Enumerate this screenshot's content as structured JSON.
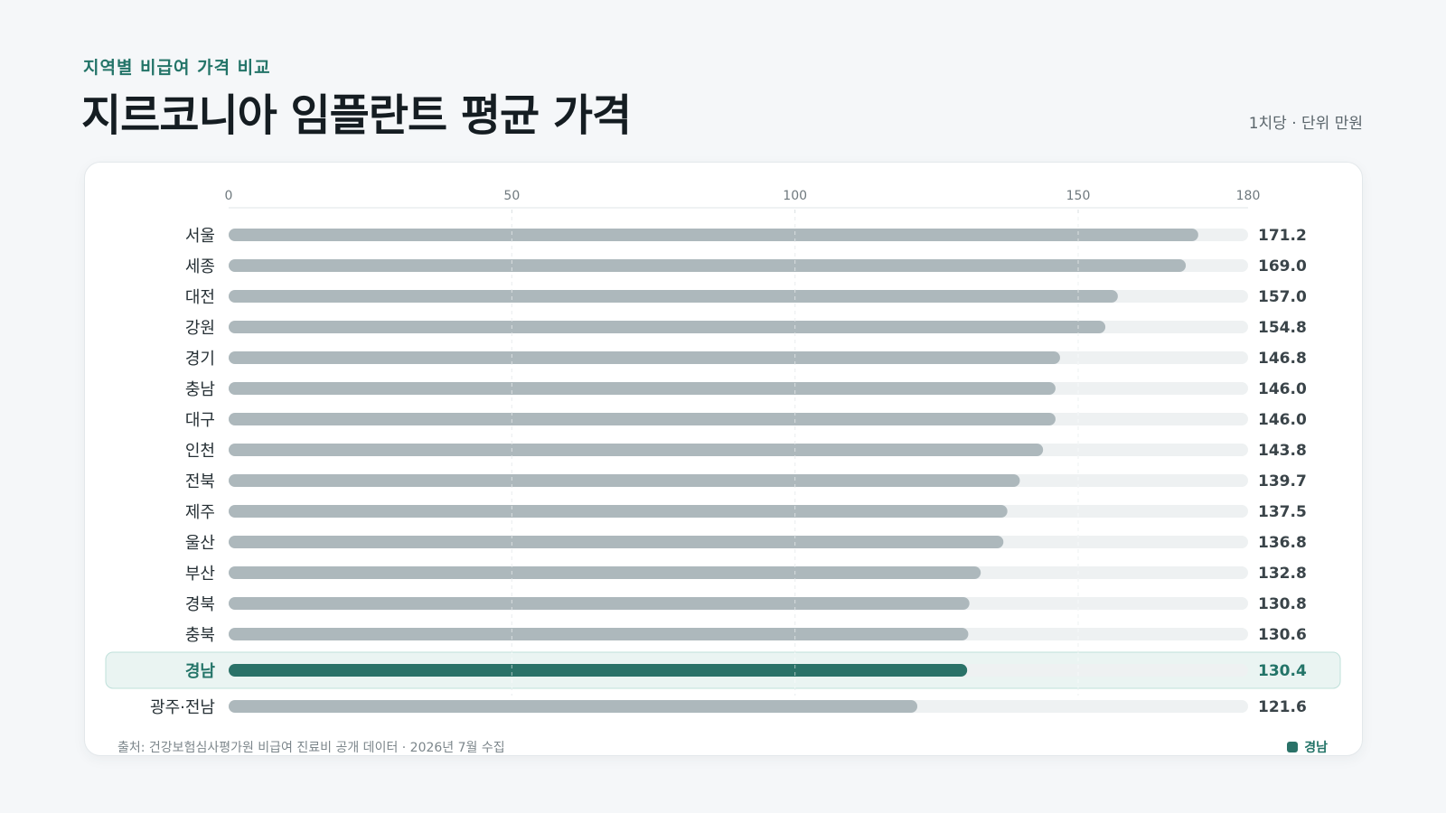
{
  "header": {
    "kicker": "지역별 비급여 가격 비교",
    "title": "지르코니아 임플란트 평균 가격",
    "unit": "1치당 · 단위 만원"
  },
  "footer": {
    "source": "출처: 건강보험심사평가원 비급여 진료비 공개 데이터 · 2026년 7월 수집",
    "legend_label": "경남"
  },
  "colors": {
    "bar": "#adb8bc",
    "track": "#eef1f2",
    "highlight": "#2a7268",
    "highlight_bg": "#eaf4f2",
    "highlight_border": "#bfe0da",
    "value_text": "#3a4449",
    "label_text": "#263035"
  },
  "chart_data": {
    "type": "bar",
    "orientation": "horizontal",
    "categories": [
      "서울",
      "세종",
      "대전",
      "강원",
      "경기",
      "충남",
      "대구",
      "인천",
      "전북",
      "제주",
      "울산",
      "부산",
      "경북",
      "충북",
      "경남",
      "광주·전남"
    ],
    "values": [
      171.2,
      169.0,
      157.0,
      154.8,
      146.8,
      146.0,
      146.0,
      143.8,
      139.7,
      137.5,
      136.8,
      132.8,
      130.8,
      130.6,
      130.4,
      121.6
    ],
    "value_labels": [
      "171.2",
      "169.0",
      "157.0",
      "154.8",
      "146.8",
      "146.0",
      "146.0",
      "143.8",
      "139.7",
      "137.5",
      "136.8",
      "132.8",
      "130.8",
      "130.6",
      "130.4",
      "121.6"
    ],
    "highlight": "경남",
    "xlim": [
      0,
      180
    ],
    "xticks": [
      0,
      50,
      100,
      150,
      180
    ],
    "xtick_labels": [
      "0",
      "50",
      "100",
      "150",
      "180"
    ],
    "grid": true,
    "legend_position": "bottom-right"
  }
}
